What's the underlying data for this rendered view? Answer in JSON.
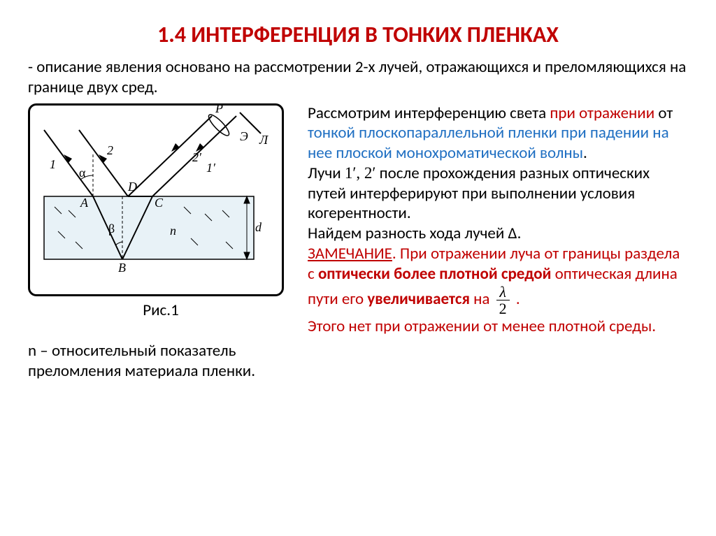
{
  "title": {
    "text": "1.4  ИНТЕРФЕРЕНЦИЯ В ТОНКИХ ПЛЕНКАХ",
    "color": "#c00000"
  },
  "intro": {
    "text": "- описание явления основано на рассмотрении 2-х лучей, отражающихся и преломляющихся на границе двух сред.",
    "color": "#000000"
  },
  "figure": {
    "caption": "Рис.1",
    "labels": {
      "P": "P",
      "E": "Э",
      "L": "Л",
      "one": "1",
      "two": "2",
      "onep": "1′",
      "twop": "2′",
      "alpha": "α",
      "beta": "β",
      "A": "A",
      "B": "B",
      "C": "C",
      "D": "D",
      "n": "n",
      "d": "d"
    },
    "colors": {
      "border": "#000000",
      "slab_fill": "#e8f2f7",
      "stroke": "#000000"
    }
  },
  "left_note": "n – относительный показатель преломления материала пленки.",
  "p1": {
    "pre": "Рассмотрим интерференцию света ",
    "red1": "при отражении",
    "mid1": " от ",
    "blue1": "тонкой плоскопараллельной пленки при падении на нее плоской монохроматической волны",
    "end": "."
  },
  "p2": {
    "pre": "Лучи  ",
    "math": "1′, 2′",
    "post": "   после прохождения разных оптических путей интерферируют при выполнении условия когерентности."
  },
  "p3": "Найдем разность хода лучей Δ.",
  "p4": {
    "note_label": "ЗАМЕЧАНИЕ",
    "a": ". При отражении луча от границы раздела с ",
    "b": "оптически более плотной средой",
    "c": " оптическая длина пути его ",
    "d": "увеличивается",
    "e": " на ",
    "frac_num": "λ",
    "frac_den": "2",
    "f": "    ."
  },
  "p5": "Этого нет при отражении от менее плотной среды.",
  "colors": {
    "red": "#c00000",
    "blue": "#1f6fc2",
    "black": "#000000"
  }
}
